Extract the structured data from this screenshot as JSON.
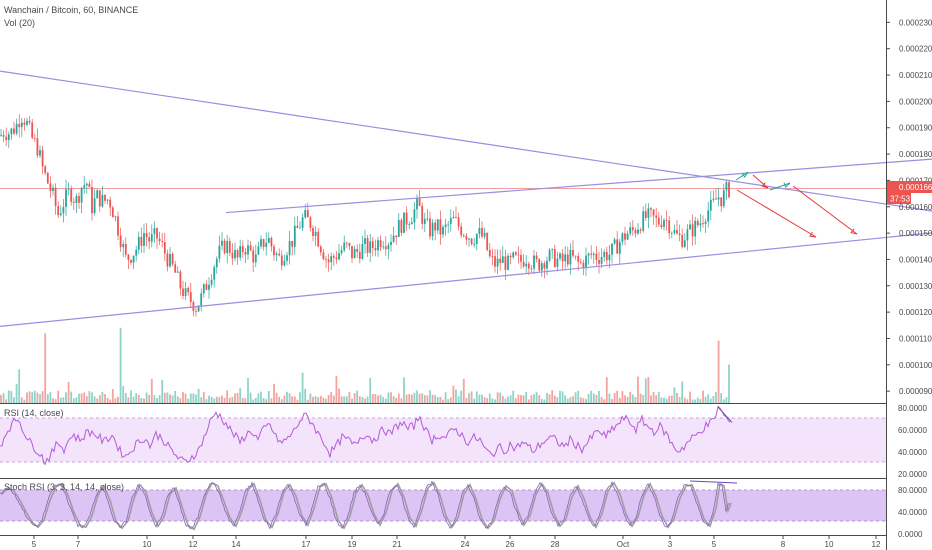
{
  "header": {
    "symbol_line": "Wanchain / Bitcoin, 60, BINANCE",
    "volume_label": "Vol (20)"
  },
  "price_badge": {
    "value": "0.0001669",
    "countdown": "37:53",
    "color": "#ef5350"
  },
  "colors": {
    "up": "#26a69a",
    "down": "#ef5350",
    "trend": "#9b8ee0",
    "osc": "#b45ad8",
    "band": "#f0e0fb",
    "arrow_red": "#e53935",
    "arrow_green": "#26a69a"
  },
  "rsi": {
    "label": "RSI (14, close)",
    "levels": [
      "80.0000",
      "60.0000",
      "40.0000",
      "20.0000"
    ],
    "upper": 70,
    "lower": 30
  },
  "stoch": {
    "label": "Stoch RSI (3, 3, 14, 14, close)",
    "levels": [
      "80.0000",
      "40.0000",
      "0.0000"
    ],
    "upper": 80,
    "lower": 20
  },
  "chart_data": {
    "type": "candlestick",
    "title": "Wanchain / Bitcoin, 60, BINANCE",
    "y_axis_ticks": [
      "0.0002300",
      "0.0002200",
      "0.0002100",
      "0.0002000",
      "0.0001900",
      "0.0001800",
      "0.0001700",
      "0.0001600",
      "0.0001500",
      "0.0001400",
      "0.0001300",
      "0.0001200",
      "0.0001100",
      "0.0001000",
      "0.0000900"
    ],
    "x_axis_ticks": [
      "5",
      "7",
      "10",
      "12",
      "14",
      "17",
      "19",
      "21",
      "24",
      "26",
      "28",
      "Oct",
      "3",
      "5",
      "8",
      "10",
      "12"
    ],
    "ylim": [
      8.55e-05,
      0.0002385
    ],
    "last_price": 0.0001669,
    "price_path": [
      [
        0,
        0.000187
      ],
      [
        4,
        0.0001885
      ],
      [
        10,
        0.000188
      ],
      [
        16,
        0.0001905
      ],
      [
        21,
        0.000195
      ],
      [
        26,
        0.0001925
      ],
      [
        32,
        0.000186
      ],
      [
        38,
        0.000182
      ],
      [
        43,
        0.000174
      ],
      [
        48,
        0.000169
      ],
      [
        53,
        0.000164
      ],
      [
        58,
        0.000157
      ],
      [
        64,
        0.000162
      ],
      [
        70,
        0.000166
      ],
      [
        76,
        0.000162
      ],
      [
        82,
        0.000168
      ],
      [
        87,
        0.000169
      ],
      [
        92,
        0.00016
      ],
      [
        97,
        0.000164
      ],
      [
        103,
        0.000162
      ],
      [
        109,
        0.000163
      ],
      [
        115,
        0.000156
      ],
      [
        120,
        0.000149
      ],
      [
        126,
        0.00014
      ],
      [
        132,
        0.000142
      ],
      [
        138,
        0.000145
      ],
      [
        144,
        0.00015
      ],
      [
        150,
        0.000147
      ],
      [
        156,
        0.000149
      ],
      [
        162,
        0.000145
      ],
      [
        168,
        0.00014
      ],
      [
        174,
        0.000136
      ],
      [
        180,
        0.00013
      ],
      [
        186,
        0.000126
      ],
      [
        192,
        0.000124
      ],
      [
        196,
        0.000122
      ],
      [
        202,
        0.000126
      ],
      [
        208,
        0.000132
      ],
      [
        214,
        0.000138
      ],
      [
        220,
        0.000143
      ],
      [
        226,
        0.000146
      ],
      [
        232,
        0.000143
      ],
      [
        238,
        0.00014
      ],
      [
        244,
        0.000145
      ],
      [
        250,
        0.000143
      ],
      [
        256,
        0.00014
      ],
      [
        262,
        0.000146
      ],
      [
        268,
        0.000148
      ],
      [
        274,
        0.000143
      ],
      [
        280,
        0.00014
      ],
      [
        286,
        0.000144
      ],
      [
        292,
        0.000147
      ],
      [
        298,
        0.000152
      ],
      [
        304,
        0.000156
      ],
      [
        310,
        0.000154
      ],
      [
        316,
        0.00015
      ],
      [
        322,
        0.000144
      ],
      [
        328,
        0.000139
      ],
      [
        334,
        0.000141
      ],
      [
        340,
        0.000143
      ],
      [
        346,
        0.000145
      ],
      [
        352,
        0.000142
      ],
      [
        358,
        0.000143
      ],
      [
        364,
        0.000145
      ],
      [
        370,
        0.000144
      ],
      [
        376,
        0.000146
      ],
      [
        382,
        0.000148
      ],
      [
        388,
        0.000147
      ],
      [
        394,
        0.00015
      ],
      [
        400,
        0.000153
      ],
      [
        406,
        0.000155
      ],
      [
        412,
        0.000157
      ],
      [
        418,
        0.000161
      ],
      [
        424,
        0.000154
      ],
      [
        430,
        0.000151
      ],
      [
        436,
        0.000153
      ],
      [
        442,
        0.00015
      ],
      [
        448,
        0.000153
      ],
      [
        454,
        0.000155
      ],
      [
        460,
        0.000152
      ],
      [
        466,
        0.00015
      ],
      [
        472,
        0.000148
      ],
      [
        478,
        0.00015
      ],
      [
        484,
        0.000148
      ],
      [
        490,
        0.00014
      ],
      [
        496,
        0.000138
      ],
      [
        502,
        0.00014
      ],
      [
        508,
        0.000138
      ],
      [
        514,
        0.00014
      ],
      [
        520,
        0.000139
      ],
      [
        526,
        0.000141
      ],
      [
        532,
        0.000139
      ],
      [
        538,
        0.000138
      ],
      [
        544,
        0.00014
      ],
      [
        550,
        0.000141
      ],
      [
        556,
        0.00014
      ],
      [
        562,
        0.000139
      ],
      [
        568,
        0.000141
      ],
      [
        574,
        0.00014
      ],
      [
        580,
        0.000138
      ],
      [
        586,
        0.00014
      ],
      [
        592,
        0.000142
      ],
      [
        598,
        0.000141
      ],
      [
        604,
        0.000142
      ],
      [
        610,
        0.000142
      ],
      [
        616,
        0.000145
      ],
      [
        622,
        0.000148
      ],
      [
        628,
        0.00015
      ],
      [
        634,
        0.000151
      ],
      [
        640,
        0.000154
      ],
      [
        646,
        0.000156
      ],
      [
        652,
        0.000156
      ],
      [
        658,
        0.000154
      ],
      [
        664,
        0.000156
      ],
      [
        670,
        0.000153
      ],
      [
        676,
        0.000149
      ],
      [
        682,
        0.000148
      ],
      [
        688,
        0.00015
      ],
      [
        694,
        0.000152
      ],
      [
        700,
        0.000154
      ],
      [
        706,
        0.000158
      ],
      [
        712,
        0.00016
      ],
      [
        718,
        0.000164
      ],
      [
        722,
        0.000163
      ],
      [
        726,
        0.000166
      ],
      [
        730,
        0.0001669
      ]
    ],
    "volume_spikes": [
      [
        18,
        0.42
      ],
      [
        44,
        0.87
      ],
      [
        119,
        0.94
      ],
      [
        718,
        0.78
      ],
      [
        728,
        0.48
      ],
      [
        302,
        0.38
      ],
      [
        636,
        0.33
      ],
      [
        404,
        0.32
      ]
    ],
    "rsi_path": [
      [
        0,
        45
      ],
      [
        4,
        52
      ],
      [
        8,
        60
      ],
      [
        14,
        66
      ],
      [
        18,
        70
      ],
      [
        22,
        62
      ],
      [
        28,
        50
      ],
      [
        34,
        44
      ],
      [
        40,
        38
      ],
      [
        45,
        30
      ],
      [
        52,
        38
      ],
      [
        58,
        48
      ],
      [
        64,
        42
      ],
      [
        72,
        55
      ],
      [
        80,
        50
      ],
      [
        88,
        58
      ],
      [
        96,
        55
      ],
      [
        104,
        48
      ],
      [
        112,
        55
      ],
      [
        120,
        40
      ],
      [
        126,
        35
      ],
      [
        132,
        42
      ],
      [
        138,
        48
      ],
      [
        144,
        52
      ],
      [
        150,
        45
      ],
      [
        156,
        55
      ],
      [
        162,
        52
      ],
      [
        168,
        44
      ],
      [
        174,
        38
      ],
      [
        180,
        32
      ],
      [
        186,
        30
      ],
      [
        192,
        35
      ],
      [
        198,
        40
      ],
      [
        204,
        52
      ],
      [
        210,
        66
      ],
      [
        216,
        75
      ],
      [
        222,
        70
      ],
      [
        228,
        62
      ],
      [
        234,
        55
      ],
      [
        240,
        48
      ],
      [
        246,
        55
      ],
      [
        252,
        58
      ],
      [
        258,
        50
      ],
      [
        264,
        60
      ],
      [
        270,
        64
      ],
      [
        276,
        52
      ],
      [
        282,
        47
      ],
      [
        288,
        52
      ],
      [
        294,
        58
      ],
      [
        300,
        68
      ],
      [
        306,
        72
      ],
      [
        312,
        66
      ],
      [
        318,
        56
      ],
      [
        324,
        48
      ],
      [
        330,
        38
      ],
      [
        336,
        44
      ],
      [
        342,
        52
      ],
      [
        348,
        50
      ],
      [
        354,
        45
      ],
      [
        360,
        52
      ],
      [
        366,
        56
      ],
      [
        372,
        50
      ],
      [
        378,
        54
      ],
      [
        384,
        60
      ],
      [
        390,
        55
      ],
      [
        396,
        62
      ],
      [
        402,
        66
      ],
      [
        408,
        60
      ],
      [
        414,
        63
      ],
      [
        420,
        72
      ],
      [
        426,
        58
      ],
      [
        432,
        50
      ],
      [
        438,
        55
      ],
      [
        444,
        52
      ],
      [
        450,
        56
      ],
      [
        456,
        60
      ],
      [
        462,
        54
      ],
      [
        468,
        48
      ],
      [
        474,
        52
      ],
      [
        480,
        50
      ],
      [
        486,
        40
      ],
      [
        492,
        36
      ],
      [
        498,
        44
      ],
      [
        504,
        40
      ],
      [
        510,
        46
      ],
      [
        516,
        42
      ],
      [
        522,
        48
      ],
      [
        528,
        44
      ],
      [
        534,
        40
      ],
      [
        540,
        46
      ],
      [
        546,
        50
      ],
      [
        552,
        52
      ],
      [
        558,
        48
      ],
      [
        564,
        44
      ],
      [
        570,
        50
      ],
      [
        576,
        46
      ],
      [
        582,
        42
      ],
      [
        588,
        48
      ],
      [
        594,
        55
      ],
      [
        600,
        58
      ],
      [
        606,
        52
      ],
      [
        612,
        60
      ],
      [
        618,
        64
      ],
      [
        624,
        70
      ],
      [
        630,
        66
      ],
      [
        636,
        60
      ],
      [
        642,
        68
      ],
      [
        648,
        62
      ],
      [
        654,
        58
      ],
      [
        660,
        62
      ],
      [
        666,
        56
      ],
      [
        672,
        46
      ],
      [
        678,
        40
      ],
      [
        684,
        44
      ],
      [
        690,
        50
      ],
      [
        696,
        54
      ],
      [
        702,
        60
      ],
      [
        708,
        64
      ],
      [
        714,
        68
      ],
      [
        718,
        80
      ],
      [
        722,
        75
      ],
      [
        726,
        70
      ],
      [
        730,
        66
      ]
    ],
    "stoch_segments": [
      [
        0,
        72
      ],
      [
        6,
        84
      ],
      [
        12,
        78
      ],
      [
        18,
        60
      ],
      [
        24,
        38
      ],
      [
        30,
        18
      ],
      [
        36,
        8
      ],
      [
        42,
        22
      ],
      [
        48,
        60
      ],
      [
        54,
        86
      ],
      [
        60,
        92
      ],
      [
        66,
        70
      ],
      [
        72,
        36
      ],
      [
        78,
        12
      ],
      [
        84,
        8
      ],
      [
        90,
        30
      ],
      [
        96,
        70
      ],
      [
        102,
        88
      ],
      [
        108,
        60
      ],
      [
        114,
        20
      ],
      [
        120,
        6
      ],
      [
        126,
        20
      ],
      [
        132,
        64
      ],
      [
        138,
        90
      ],
      [
        144,
        76
      ],
      [
        150,
        36
      ],
      [
        156,
        10
      ],
      [
        162,
        28
      ],
      [
        168,
        72
      ],
      [
        174,
        84
      ],
      [
        180,
        48
      ],
      [
        186,
        12
      ],
      [
        192,
        4
      ],
      [
        198,
        28
      ],
      [
        204,
        70
      ],
      [
        210,
        94
      ],
      [
        216,
        88
      ],
      [
        222,
        58
      ],
      [
        228,
        26
      ],
      [
        234,
        10
      ],
      [
        240,
        40
      ],
      [
        246,
        80
      ],
      [
        252,
        92
      ],
      [
        258,
        60
      ],
      [
        264,
        22
      ],
      [
        270,
        8
      ],
      [
        276,
        34
      ],
      [
        282,
        76
      ],
      [
        288,
        90
      ],
      [
        294,
        68
      ],
      [
        300,
        30
      ],
      [
        306,
        12
      ],
      [
        312,
        44
      ],
      [
        318,
        86
      ],
      [
        324,
        92
      ],
      [
        330,
        64
      ],
      [
        336,
        22
      ],
      [
        342,
        6
      ],
      [
        348,
        30
      ],
      [
        354,
        74
      ],
      [
        360,
        90
      ],
      [
        366,
        70
      ],
      [
        372,
        34
      ],
      [
        378,
        12
      ],
      [
        384,
        36
      ],
      [
        390,
        78
      ],
      [
        396,
        92
      ],
      [
        402,
        66
      ],
      [
        408,
        26
      ],
      [
        414,
        10
      ],
      [
        420,
        42
      ],
      [
        426,
        84
      ],
      [
        432,
        94
      ],
      [
        438,
        70
      ],
      [
        444,
        30
      ],
      [
        450,
        8
      ],
      [
        456,
        26
      ],
      [
        462,
        72
      ],
      [
        468,
        90
      ],
      [
        474,
        62
      ],
      [
        480,
        24
      ],
      [
        486,
        6
      ],
      [
        492,
        20
      ],
      [
        498,
        62
      ],
      [
        504,
        88
      ],
      [
        510,
        78
      ],
      [
        516,
        40
      ],
      [
        522,
        12
      ],
      [
        528,
        30
      ],
      [
        534,
        72
      ],
      [
        540,
        92
      ],
      [
        546,
        74
      ],
      [
        552,
        34
      ],
      [
        558,
        10
      ],
      [
        564,
        24
      ],
      [
        570,
        66
      ],
      [
        576,
        88
      ],
      [
        582,
        64
      ],
      [
        588,
        28
      ],
      [
        594,
        8
      ],
      [
        600,
        34
      ],
      [
        606,
        78
      ],
      [
        612,
        94
      ],
      [
        618,
        72
      ],
      [
        624,
        34
      ],
      [
        630,
        10
      ],
      [
        636,
        28
      ],
      [
        642,
        70
      ],
      [
        648,
        92
      ],
      [
        654,
        68
      ],
      [
        660,
        30
      ],
      [
        666,
        8
      ],
      [
        672,
        24
      ],
      [
        678,
        64
      ],
      [
        684,
        88
      ],
      [
        690,
        90
      ],
      [
        696,
        60
      ],
      [
        702,
        24
      ],
      [
        708,
        10
      ],
      [
        714,
        44
      ],
      [
        718,
        92
      ],
      [
        722,
        88
      ],
      [
        726,
        40
      ],
      [
        730,
        60
      ]
    ],
    "trendlines": [
      {
        "name": "descending-resistance",
        "points": [
          [
            0,
            0.0002115
          ],
          [
            932,
            0.0001584
          ]
        ]
      },
      {
        "name": "rising-support",
        "points": [
          [
            0,
            0.0001146
          ],
          [
            932,
            0.0001501
          ]
        ]
      },
      {
        "name": "rising-upper-channel",
        "points": [
          [
            226,
            0.0001578
          ],
          [
            932,
            0.0001781
          ]
        ]
      }
    ]
  }
}
